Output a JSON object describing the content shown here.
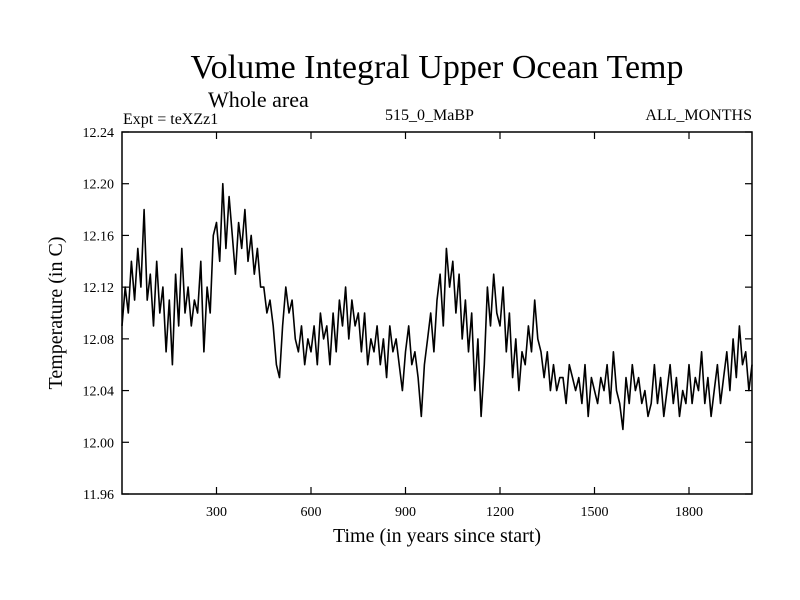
{
  "chart_data": {
    "type": "line",
    "title": "Volume Integral Upper Ocean Temp",
    "subtitle": "Whole area",
    "experiment": "Expt = teXZz1",
    "period": "515_0_MaBP",
    "months": "ALL_MONTHS",
    "xlabel": "Time (in years since start)",
    "ylabel": "Temperature (in C)",
    "xlim": [
      0,
      2000
    ],
    "ylim": [
      11.96,
      12.24
    ],
    "xticks": [
      300,
      600,
      900,
      1200,
      1500,
      1800
    ],
    "xtick_labels": [
      "300",
      "600",
      "900",
      "1200",
      "1500",
      "1800"
    ],
    "yticks": [
      11.96,
      12.0,
      12.04,
      12.08,
      12.12,
      12.16,
      12.2,
      12.24
    ],
    "ytick_labels": [
      "11.96",
      "12.00",
      "12.04",
      "12.08",
      "12.12",
      "12.16",
      "12.20",
      "12.24"
    ],
    "grid": false,
    "series": [
      {
        "name": "Volume integral upper ocean temperature",
        "x": [
          0,
          10,
          20,
          30,
          40,
          50,
          60,
          70,
          80,
          90,
          100,
          110,
          120,
          130,
          140,
          150,
          160,
          170,
          180,
          190,
          200,
          210,
          220,
          230,
          240,
          250,
          260,
          270,
          280,
          290,
          300,
          310,
          320,
          330,
          340,
          350,
          360,
          370,
          380,
          390,
          400,
          410,
          420,
          430,
          440,
          450,
          460,
          470,
          480,
          490,
          500,
          510,
          520,
          530,
          540,
          550,
          560,
          570,
          580,
          590,
          600,
          610,
          620,
          630,
          640,
          650,
          660,
          670,
          680,
          690,
          700,
          710,
          720,
          730,
          740,
          750,
          760,
          770,
          780,
          790,
          800,
          810,
          820,
          830,
          840,
          850,
          860,
          870,
          880,
          890,
          900,
          910,
          920,
          930,
          940,
          950,
          960,
          970,
          980,
          990,
          1000,
          1010,
          1020,
          1030,
          1040,
          1050,
          1060,
          1070,
          1080,
          1090,
          1100,
          1110,
          1120,
          1130,
          1140,
          1150,
          1160,
          1170,
          1180,
          1190,
          1200,
          1210,
          1220,
          1230,
          1240,
          1250,
          1260,
          1270,
          1280,
          1290,
          1300,
          1310,
          1320,
          1330,
          1340,
          1350,
          1360,
          1370,
          1380,
          1390,
          1400,
          1410,
          1420,
          1430,
          1440,
          1450,
          1460,
          1470,
          1480,
          1490,
          1500,
          1510,
          1520,
          1530,
          1540,
          1550,
          1560,
          1570,
          1580,
          1590,
          1600,
          1610,
          1620,
          1630,
          1640,
          1650,
          1660,
          1670,
          1680,
          1690,
          1700,
          1710,
          1720,
          1730,
          1740,
          1750,
          1760,
          1770,
          1780,
          1790,
          1800,
          1810,
          1820,
          1830,
          1840,
          1850,
          1860,
          1870,
          1880,
          1890,
          1900,
          1910,
          1920,
          1930,
          1940,
          1950,
          1960,
          1970,
          1980,
          1990,
          2000
        ],
        "y": [
          12.09,
          12.12,
          12.1,
          12.14,
          12.11,
          12.15,
          12.12,
          12.18,
          12.11,
          12.13,
          12.09,
          12.14,
          12.1,
          12.12,
          12.07,
          12.11,
          12.06,
          12.13,
          12.09,
          12.15,
          12.1,
          12.12,
          12.09,
          12.11,
          12.1,
          12.14,
          12.07,
          12.12,
          12.1,
          12.16,
          12.17,
          12.14,
          12.2,
          12.15,
          12.19,
          12.16,
          12.13,
          12.17,
          12.15,
          12.18,
          12.14,
          12.16,
          12.13,
          12.15,
          12.12,
          12.12,
          12.1,
          12.11,
          12.09,
          12.06,
          12.05,
          12.09,
          12.12,
          12.1,
          12.11,
          12.08,
          12.07,
          12.09,
          12.06,
          12.08,
          12.07,
          12.09,
          12.06,
          12.1,
          12.08,
          12.09,
          12.06,
          12.1,
          12.07,
          12.11,
          12.09,
          12.12,
          12.08,
          12.11,
          12.09,
          12.1,
          12.07,
          12.1,
          12.06,
          12.08,
          12.07,
          12.09,
          12.06,
          12.08,
          12.05,
          12.09,
          12.07,
          12.08,
          12.06,
          12.04,
          12.07,
          12.09,
          12.06,
          12.07,
          12.05,
          12.02,
          12.06,
          12.08,
          12.1,
          12.07,
          12.11,
          12.13,
          12.09,
          12.15,
          12.12,
          12.14,
          12.1,
          12.13,
          12.08,
          12.11,
          12.07,
          12.1,
          12.04,
          12.08,
          12.02,
          12.06,
          12.12,
          12.09,
          12.13,
          12.1,
          12.09,
          12.12,
          12.07,
          12.1,
          12.05,
          12.08,
          12.04,
          12.07,
          12.06,
          12.09,
          12.07,
          12.11,
          12.08,
          12.07,
          12.05,
          12.07,
          12.04,
          12.06,
          12.04,
          12.05,
          12.05,
          12.03,
          12.06,
          12.05,
          12.04,
          12.05,
          12.03,
          12.06,
          12.02,
          12.05,
          12.04,
          12.03,
          12.05,
          12.04,
          12.06,
          12.03,
          12.07,
          12.04,
          12.03,
          12.01,
          12.05,
          12.03,
          12.06,
          12.04,
          12.05,
          12.03,
          12.04,
          12.02,
          12.03,
          12.06,
          12.03,
          12.05,
          12.02,
          12.04,
          12.06,
          12.03,
          12.05,
          12.02,
          12.04,
          12.03,
          12.06,
          12.03,
          12.05,
          12.04,
          12.07,
          12.03,
          12.05,
          12.02,
          12.04,
          12.06,
          12.03,
          12.05,
          12.07,
          12.04,
          12.08,
          12.05,
          12.09,
          12.06,
          12.07,
          12.04,
          12.06
        ]
      }
    ]
  },
  "style": {
    "line_color": "#000000",
    "axis_color": "#000000",
    "background": "#ffffff"
  }
}
